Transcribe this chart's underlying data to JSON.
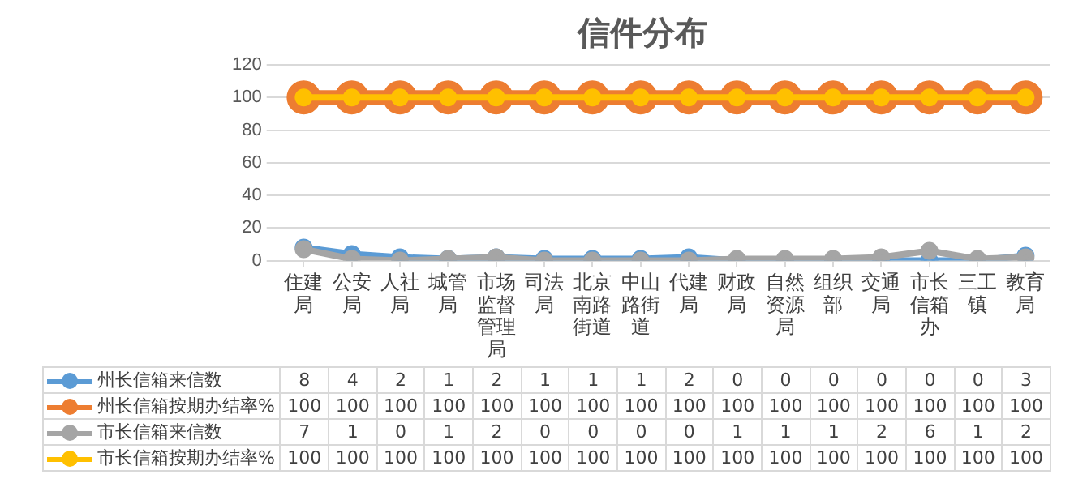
{
  "chart_data": {
    "type": "line",
    "title": "信件分布",
    "categories": [
      "住建局",
      "公安局",
      "人社局",
      "城管局",
      "市场监督管理局",
      "司法局",
      "北京南路街道",
      "中山路街道",
      "代建局",
      "财政局",
      "自然资源局",
      "组织部",
      "交通局",
      "市长信箱办",
      "三工镇",
      "教育局"
    ],
    "series": [
      {
        "name": "州长信箱来信数",
        "color": "#5b9bd5",
        "values": [
          8,
          4,
          2,
          1,
          2,
          1,
          1,
          1,
          2,
          0,
          0,
          0,
          0,
          0,
          0,
          3
        ]
      },
      {
        "name": "州长信箱按期办结率%",
        "color": "#ed7d31",
        "values": [
          100,
          100,
          100,
          100,
          100,
          100,
          100,
          100,
          100,
          100,
          100,
          100,
          100,
          100,
          100,
          100
        ]
      },
      {
        "name": "市长信箱来信数",
        "color": "#a5a5a5",
        "values": [
          7,
          1,
          0,
          1,
          2,
          0,
          0,
          0,
          0,
          1,
          1,
          1,
          2,
          6,
          1,
          2
        ]
      },
      {
        "name": "市长信箱按期办结率%",
        "color": "#ffc000",
        "values": [
          100,
          100,
          100,
          100,
          100,
          100,
          100,
          100,
          100,
          100,
          100,
          100,
          100,
          100,
          100,
          100
        ]
      }
    ],
    "ylim": [
      0,
      120
    ],
    "yticks": [
      0,
      20,
      40,
      60,
      80,
      100,
      120
    ],
    "grid": "y",
    "legend": "bottom",
    "marker": "circle",
    "line_style": "solid",
    "data_labels": true
  }
}
